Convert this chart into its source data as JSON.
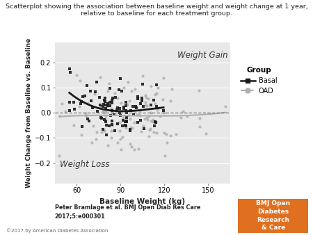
{
  "title_line1": "Scatterplot showing the association between baseline weight and weight change at 1 year,",
  "title_line2": "relative to baseline for each treatment group.",
  "xlabel": "Baseline Weight (kg)",
  "ylabel": "Weight Change from Baseline vs. Baseline",
  "xlim": [
    45,
    165
  ],
  "ylim": [
    -0.28,
    0.28
  ],
  "xticks": [
    60,
    90,
    120,
    150
  ],
  "yticks": [
    -0.2,
    -0.1,
    0.0,
    0.1,
    0.2
  ],
  "plot_bg_color": "#e8e8e8",
  "fig_bg_color": "#ffffff",
  "basal_color": "#1a1a1a",
  "oad_color": "#b0b0b0",
  "weight_gain_label": "Weight Gain",
  "weight_loss_label": "Weight Loss",
  "citation_line1": "Peter Bramlage et al. BMJ Open Diab Res Care",
  "citation_line2": "2017;5:e000301",
  "copyright": "©2017 by American Diabetes Association",
  "bmj_label": "BMJ Open\nDiabetes\nResearch\n& Care",
  "bmj_bg": "#e07020",
  "group_label": "Group",
  "legend_basal": "Basal",
  "legend_oad": "OAD",
  "seed": 42,
  "n_basal": 100,
  "n_oad": 120
}
